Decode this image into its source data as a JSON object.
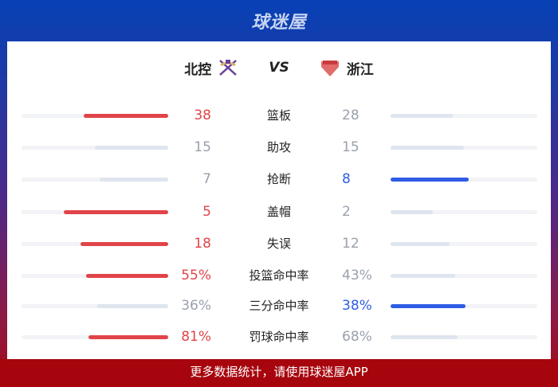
{
  "brand": "球迷屋",
  "match": {
    "home": "北控",
    "vs": "VS",
    "away": "浙江"
  },
  "colors": {
    "home_win": "#e04449",
    "away_win": "#2e5ce6",
    "neutral": "#dfe5ee",
    "track": "#f2f3f6",
    "home_text": "#e04449",
    "away_text": "#2e5ce6"
  },
  "stats": [
    {
      "label": "篮板",
      "home": "38",
      "away": "28",
      "h": 38,
      "a": 28
    },
    {
      "label": "助攻",
      "home": "15",
      "away": "15",
      "h": 15,
      "a": 15
    },
    {
      "label": "抢断",
      "home": "7",
      "away": "8",
      "h": 7,
      "a": 8
    },
    {
      "label": "盖帽",
      "home": "5",
      "away": "2",
      "h": 5,
      "a": 2
    },
    {
      "label": "失误",
      "home": "18",
      "away": "12",
      "h": 18,
      "a": 12
    },
    {
      "label": "投篮命中率",
      "home": "55%",
      "away": "43%",
      "h": 55,
      "a": 43
    },
    {
      "label": "三分命中率",
      "home": "36%",
      "away": "38%",
      "h": 36,
      "a": 38
    },
    {
      "label": "罚球命中率",
      "home": "81%",
      "away": "68%",
      "h": 81,
      "a": 68
    }
  ],
  "footer": "更多数据统计，请使用球迷屋APP"
}
